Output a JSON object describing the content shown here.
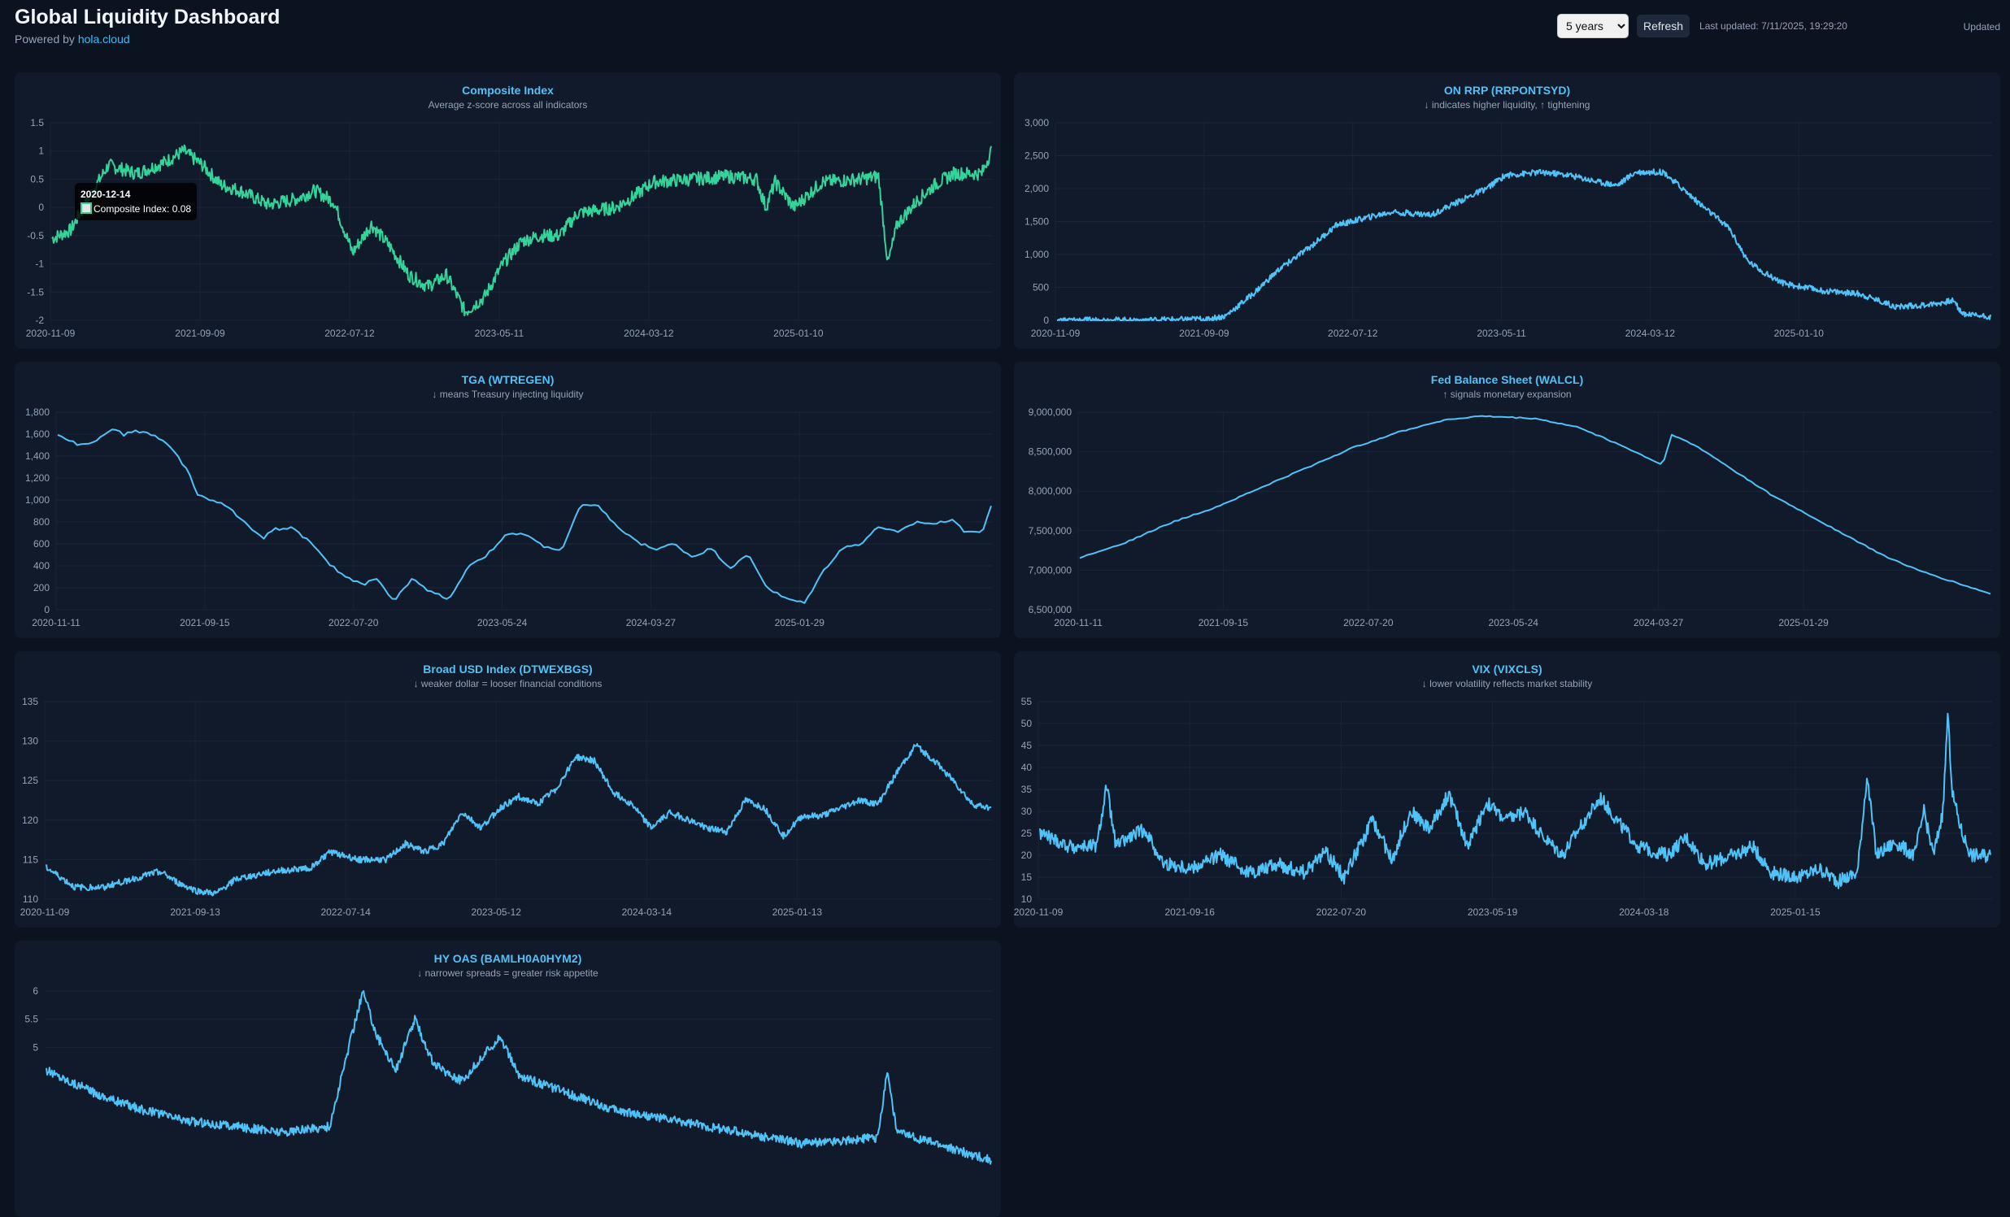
{
  "header": {
    "title": "Global Liquidity Dashboard",
    "powered_prefix": "Powered by",
    "powered_link": "hola.cloud"
  },
  "controls": {
    "range_selected": "5 years",
    "refresh_label": "Refresh",
    "last_updated": "Last updated: 7/11/2025, 19:29:20",
    "status": "Updated"
  },
  "tooltip": {
    "date": "2020-12-14",
    "label": "Composite Index: 0.08"
  },
  "colors": {
    "composite": "#34d399",
    "series": "#4fc3f7",
    "background": "#0b1220",
    "card": "#111a2b"
  },
  "chart_data": [
    {
      "id": "composite",
      "type": "line",
      "title": "Composite Index",
      "subtitle": "Average z-score across all indicators",
      "color": "#34d399",
      "ylim": [
        -2,
        1.5
      ],
      "yticks": [
        "1.5",
        "1",
        "0.5",
        "0",
        "-0.5",
        "-1",
        "-1.5",
        "-2"
      ],
      "yvals": [
        1.5,
        1,
        0.5,
        0,
        -0.5,
        -1,
        -1.5,
        -2
      ],
      "xticks": [
        "2020-11-09",
        "2021-09-09",
        "2022-07-12",
        "2023-05-11",
        "2024-03-12",
        "2025-01-10"
      ],
      "noise": 0.12,
      "points": [
        [
          0,
          -0.55
        ],
        [
          0.02,
          -0.4
        ],
        [
          0.04,
          0.2
        ],
        [
          0.06,
          0.75
        ],
        [
          0.09,
          0.6
        ],
        [
          0.12,
          0.8
        ],
        [
          0.14,
          1.0
        ],
        [
          0.16,
          0.75
        ],
        [
          0.18,
          0.4
        ],
        [
          0.2,
          0.3
        ],
        [
          0.23,
          0.05
        ],
        [
          0.26,
          0.15
        ],
        [
          0.28,
          0.3
        ],
        [
          0.3,
          0.1
        ],
        [
          0.32,
          -0.8
        ],
        [
          0.34,
          -0.3
        ],
        [
          0.36,
          -0.7
        ],
        [
          0.38,
          -1.2
        ],
        [
          0.4,
          -1.4
        ],
        [
          0.42,
          -1.2
        ],
        [
          0.44,
          -1.85
        ],
        [
          0.46,
          -1.6
        ],
        [
          0.48,
          -1.0
        ],
        [
          0.5,
          -0.6
        ],
        [
          0.52,
          -0.5
        ],
        [
          0.54,
          -0.5
        ],
        [
          0.56,
          -0.1
        ],
        [
          0.6,
          0.0
        ],
        [
          0.62,
          0.2
        ],
        [
          0.64,
          0.45
        ],
        [
          0.68,
          0.5
        ],
        [
          0.72,
          0.55
        ],
        [
          0.75,
          0.5
        ],
        [
          0.76,
          0.0
        ],
        [
          0.77,
          0.45
        ],
        [
          0.79,
          0.0
        ],
        [
          0.82,
          0.45
        ],
        [
          0.86,
          0.5
        ],
        [
          0.88,
          0.55
        ],
        [
          0.89,
          -1.0
        ],
        [
          0.9,
          -0.3
        ],
        [
          0.92,
          0.1
        ],
        [
          0.94,
          0.4
        ],
        [
          0.96,
          0.6
        ],
        [
          0.98,
          0.6
        ],
        [
          0.99,
          0.6
        ],
        [
          1.0,
          1.0
        ]
      ]
    },
    {
      "id": "onrrp",
      "type": "line",
      "title": "ON RRP (RRPONTSYD)",
      "subtitle": "↓ indicates higher liquidity, ↑ tightening",
      "color": "#4fc3f7",
      "ylim": [
        0,
        3000
      ],
      "yticks": [
        "3,000",
        "2,500",
        "2,000",
        "1,500",
        "1,000",
        "500",
        "0"
      ],
      "yvals": [
        3000,
        2500,
        2000,
        1500,
        1000,
        500,
        0
      ],
      "xticks": [
        "2020-11-09",
        "2021-09-09",
        "2022-07-12",
        "2023-05-11",
        "2024-03-12",
        "2025-01-10"
      ],
      "noise": 45,
      "points": [
        [
          0,
          0
        ],
        [
          0.1,
          5
        ],
        [
          0.16,
          20
        ],
        [
          0.18,
          60
        ],
        [
          0.21,
          400
        ],
        [
          0.24,
          800
        ],
        [
          0.27,
          1100
        ],
        [
          0.3,
          1450
        ],
        [
          0.33,
          1550
        ],
        [
          0.36,
          1650
        ],
        [
          0.4,
          1600
        ],
        [
          0.43,
          1800
        ],
        [
          0.46,
          2000
        ],
        [
          0.48,
          2200
        ],
        [
          0.52,
          2250
        ],
        [
          0.55,
          2200
        ],
        [
          0.58,
          2100
        ],
        [
          0.6,
          2050
        ],
        [
          0.62,
          2250
        ],
        [
          0.65,
          2250
        ],
        [
          0.67,
          2000
        ],
        [
          0.69,
          1750
        ],
        [
          0.72,
          1400
        ],
        [
          0.74,
          900
        ],
        [
          0.76,
          700
        ],
        [
          0.78,
          550
        ],
        [
          0.82,
          450
        ],
        [
          0.86,
          400
        ],
        [
          0.9,
          200
        ],
        [
          0.94,
          250
        ],
        [
          0.96,
          300
        ],
        [
          0.97,
          100
        ],
        [
          1.0,
          60
        ]
      ]
    },
    {
      "id": "tga",
      "type": "line",
      "title": "TGA (WTREGEN)",
      "subtitle": "↓ means Treasury injecting liquidity",
      "color": "#4fc3f7",
      "ylim": [
        0,
        1800
      ],
      "yticks": [
        "1,800",
        "1,600",
        "1,400",
        "1,200",
        "1,000",
        "800",
        "600",
        "400",
        "200",
        "0"
      ],
      "yvals": [
        1800,
        1600,
        1400,
        1200,
        1000,
        800,
        600,
        400,
        200,
        0
      ],
      "xticks": [
        "2020-11-11",
        "2021-09-15",
        "2022-07-20",
        "2023-05-24",
        "2024-03-27",
        "2025-01-29"
      ],
      "noise": 12,
      "points": [
        [
          0,
          1600
        ],
        [
          0.02,
          1510
        ],
        [
          0.04,
          1530
        ],
        [
          0.05,
          1600
        ],
        [
          0.06,
          1660
        ],
        [
          0.07,
          1590
        ],
        [
          0.08,
          1630
        ],
        [
          0.1,
          1600
        ],
        [
          0.12,
          1500
        ],
        [
          0.14,
          1250
        ],
        [
          0.15,
          1050
        ],
        [
          0.17,
          980
        ],
        [
          0.18,
          950
        ],
        [
          0.2,
          800
        ],
        [
          0.22,
          650
        ],
        [
          0.23,
          730
        ],
        [
          0.25,
          750
        ],
        [
          0.27,
          620
        ],
        [
          0.29,
          420
        ],
        [
          0.31,
          290
        ],
        [
          0.33,
          230
        ],
        [
          0.34,
          300
        ],
        [
          0.36,
          80
        ],
        [
          0.38,
          280
        ],
        [
          0.4,
          160
        ],
        [
          0.42,
          100
        ],
        [
          0.44,
          400
        ],
        [
          0.46,
          500
        ],
        [
          0.48,
          680
        ],
        [
          0.5,
          690
        ],
        [
          0.52,
          580
        ],
        [
          0.54,
          540
        ],
        [
          0.56,
          950
        ],
        [
          0.58,
          940
        ],
        [
          0.6,
          750
        ],
        [
          0.62,
          620
        ],
        [
          0.64,
          550
        ],
        [
          0.66,
          600
        ],
        [
          0.68,
          480
        ],
        [
          0.7,
          560
        ],
        [
          0.72,
          380
        ],
        [
          0.74,
          500
        ],
        [
          0.76,
          200
        ],
        [
          0.78,
          100
        ],
        [
          0.8,
          60
        ],
        [
          0.82,
          350
        ],
        [
          0.84,
          560
        ],
        [
          0.86,
          600
        ],
        [
          0.88,
          760
        ],
        [
          0.9,
          700
        ],
        [
          0.92,
          800
        ],
        [
          0.94,
          780
        ],
        [
          0.96,
          830
        ],
        [
          0.97,
          720
        ],
        [
          0.99,
          700
        ],
        [
          1.0,
          950
        ]
      ]
    },
    {
      "id": "walcl",
      "type": "line",
      "title": "Fed Balance Sheet (WALCL)",
      "subtitle": "↑ signals monetary expansion",
      "color": "#4fc3f7",
      "ylim": [
        6500000,
        9000000
      ],
      "yticks": [
        "9,000,000",
        "8,500,000",
        "8,000,000",
        "7,500,000",
        "7,000,000",
        "6,500,000"
      ],
      "yvals": [
        9000000,
        8500000,
        8000000,
        7500000,
        7000000,
        6500000
      ],
      "xticks": [
        "2020-11-11",
        "2021-09-15",
        "2022-07-20",
        "2023-05-24",
        "2024-03-27",
        "2025-01-29"
      ],
      "noise": 8000,
      "points": [
        [
          0,
          7160000
        ],
        [
          0.05,
          7350000
        ],
        [
          0.1,
          7600000
        ],
        [
          0.15,
          7800000
        ],
        [
          0.2,
          8050000
        ],
        [
          0.25,
          8300000
        ],
        [
          0.3,
          8550000
        ],
        [
          0.35,
          8750000
        ],
        [
          0.4,
          8900000
        ],
        [
          0.44,
          8950000
        ],
        [
          0.5,
          8920000
        ],
        [
          0.55,
          8800000
        ],
        [
          0.6,
          8550000
        ],
        [
          0.64,
          8330000
        ],
        [
          0.65,
          8720000
        ],
        [
          0.68,
          8550000
        ],
        [
          0.72,
          8250000
        ],
        [
          0.76,
          7950000
        ],
        [
          0.8,
          7700000
        ],
        [
          0.84,
          7450000
        ],
        [
          0.88,
          7200000
        ],
        [
          0.92,
          7000000
        ],
        [
          0.96,
          6850000
        ],
        [
          1.0,
          6700000
        ]
      ]
    },
    {
      "id": "usd",
      "type": "line",
      "title": "Broad USD Index (DTWEXBGS)",
      "subtitle": "↓ weaker dollar = looser financial conditions",
      "color": "#4fc3f7",
      "ylim": [
        110,
        135
      ],
      "yticks": [
        "135",
        "130",
        "125",
        "120",
        "115",
        "110"
      ],
      "yvals": [
        135,
        130,
        125,
        120,
        115,
        110
      ],
      "xticks": [
        "2020-11-09",
        "2021-09-13",
        "2022-07-14",
        "2023-05-12",
        "2024-03-14",
        "2025-01-13"
      ],
      "noise": 0.4,
      "points": [
        [
          0,
          114
        ],
        [
          0.03,
          111.5
        ],
        [
          0.06,
          111.5
        ],
        [
          0.09,
          112.5
        ],
        [
          0.12,
          113.5
        ],
        [
          0.14,
          112
        ],
        [
          0.16,
          111
        ],
        [
          0.18,
          110.7
        ],
        [
          0.2,
          112.5
        ],
        [
          0.24,
          113.5
        ],
        [
          0.28,
          114
        ],
        [
          0.3,
          116
        ],
        [
          0.33,
          115
        ],
        [
          0.36,
          115
        ],
        [
          0.38,
          117
        ],
        [
          0.4,
          116
        ],
        [
          0.42,
          117
        ],
        [
          0.44,
          121
        ],
        [
          0.46,
          119
        ],
        [
          0.48,
          121.5
        ],
        [
          0.5,
          123
        ],
        [
          0.52,
          122
        ],
        [
          0.54,
          124
        ],
        [
          0.56,
          128
        ],
        [
          0.58,
          127.5
        ],
        [
          0.6,
          123.5
        ],
        [
          0.62,
          122
        ],
        [
          0.64,
          119
        ],
        [
          0.66,
          121
        ],
        [
          0.68,
          120
        ],
        [
          0.7,
          119
        ],
        [
          0.72,
          118.5
        ],
        [
          0.74,
          122.5
        ],
        [
          0.76,
          121.5
        ],
        [
          0.78,
          118
        ],
        [
          0.8,
          120.5
        ],
        [
          0.82,
          120.5
        ],
        [
          0.84,
          121.5
        ],
        [
          0.86,
          122.5
        ],
        [
          0.88,
          122
        ],
        [
          0.9,
          126
        ],
        [
          0.92,
          129.5
        ],
        [
          0.94,
          127.5
        ],
        [
          0.96,
          125
        ],
        [
          0.98,
          122
        ],
        [
          1.0,
          121.5
        ]
      ]
    },
    {
      "id": "vix",
      "type": "line",
      "title": "VIX (VIXCLS)",
      "subtitle": "↓ lower volatility reflects market stability",
      "color": "#4fc3f7",
      "ylim": [
        10,
        55
      ],
      "yticks": [
        "55",
        "50",
        "45",
        "40",
        "35",
        "30",
        "25",
        "20",
        "15",
        "10"
      ],
      "yvals": [
        55,
        50,
        45,
        40,
        35,
        30,
        25,
        20,
        15,
        10
      ],
      "xticks": [
        "2020-11-09",
        "2021-09-16",
        "2022-07-20",
        "2023-05-19",
        "2024-03-18",
        "2025-01-15"
      ],
      "noise": 1.6,
      "points": [
        [
          0,
          25
        ],
        [
          0.03,
          22
        ],
        [
          0.06,
          22
        ],
        [
          0.07,
          36
        ],
        [
          0.08,
          22
        ],
        [
          0.11,
          26
        ],
        [
          0.13,
          18
        ],
        [
          0.16,
          17
        ],
        [
          0.19,
          20
        ],
        [
          0.22,
          16
        ],
        [
          0.25,
          18
        ],
        [
          0.28,
          16
        ],
        [
          0.3,
          21
        ],
        [
          0.32,
          15
        ],
        [
          0.35,
          28
        ],
        [
          0.37,
          19
        ],
        [
          0.39,
          30
        ],
        [
          0.41,
          26
        ],
        [
          0.43,
          34
        ],
        [
          0.45,
          22
        ],
        [
          0.47,
          32
        ],
        [
          0.49,
          28
        ],
        [
          0.51,
          30
        ],
        [
          0.53,
          24
        ],
        [
          0.55,
          20
        ],
        [
          0.57,
          27
        ],
        [
          0.59,
          33
        ],
        [
          0.61,
          27
        ],
        [
          0.63,
          22
        ],
        [
          0.66,
          20
        ],
        [
          0.68,
          24
        ],
        [
          0.7,
          18
        ],
        [
          0.73,
          20
        ],
        [
          0.75,
          22
        ],
        [
          0.77,
          16
        ],
        [
          0.8,
          15
        ],
        [
          0.82,
          17
        ],
        [
          0.84,
          14
        ],
        [
          0.86,
          16
        ],
        [
          0.87,
          38
        ],
        [
          0.88,
          20
        ],
        [
          0.9,
          23
        ],
        [
          0.92,
          20
        ],
        [
          0.93,
          30
        ],
        [
          0.94,
          20
        ],
        [
          0.95,
          30
        ],
        [
          0.955,
          52
        ],
        [
          0.96,
          34
        ],
        [
          0.97,
          25
        ],
        [
          0.98,
          20
        ],
        [
          1.0,
          20
        ]
      ]
    },
    {
      "id": "hyoas",
      "type": "line",
      "title": "HY OAS (BAMLH0A0HYM2)",
      "subtitle": "↓ narrower spreads = greater risk appetite",
      "color": "#4fc3f7",
      "ylim": [
        2.5,
        6
      ],
      "yticks": [
        "6",
        "5.5",
        "5"
      ],
      "yvals": [
        6,
        5.5,
        5
      ],
      "xticks": [],
      "noise": 0.08,
      "points": [
        [
          0,
          4.6
        ],
        [
          0.05,
          4.2
        ],
        [
          0.1,
          3.9
        ],
        [
          0.15,
          3.7
        ],
        [
          0.2,
          3.6
        ],
        [
          0.25,
          3.5
        ],
        [
          0.3,
          3.6
        ],
        [
          0.32,
          5.0
        ],
        [
          0.335,
          6.0
        ],
        [
          0.35,
          5.2
        ],
        [
          0.37,
          4.6
        ],
        [
          0.39,
          5.5
        ],
        [
          0.41,
          4.7
        ],
        [
          0.44,
          4.4
        ],
        [
          0.48,
          5.2
        ],
        [
          0.5,
          4.5
        ],
        [
          0.55,
          4.2
        ],
        [
          0.6,
          3.9
        ],
        [
          0.7,
          3.6
        ],
        [
          0.8,
          3.3
        ],
        [
          0.88,
          3.4
        ],
        [
          0.89,
          4.6
        ],
        [
          0.9,
          3.5
        ],
        [
          1.0,
          3.0
        ]
      ]
    }
  ]
}
